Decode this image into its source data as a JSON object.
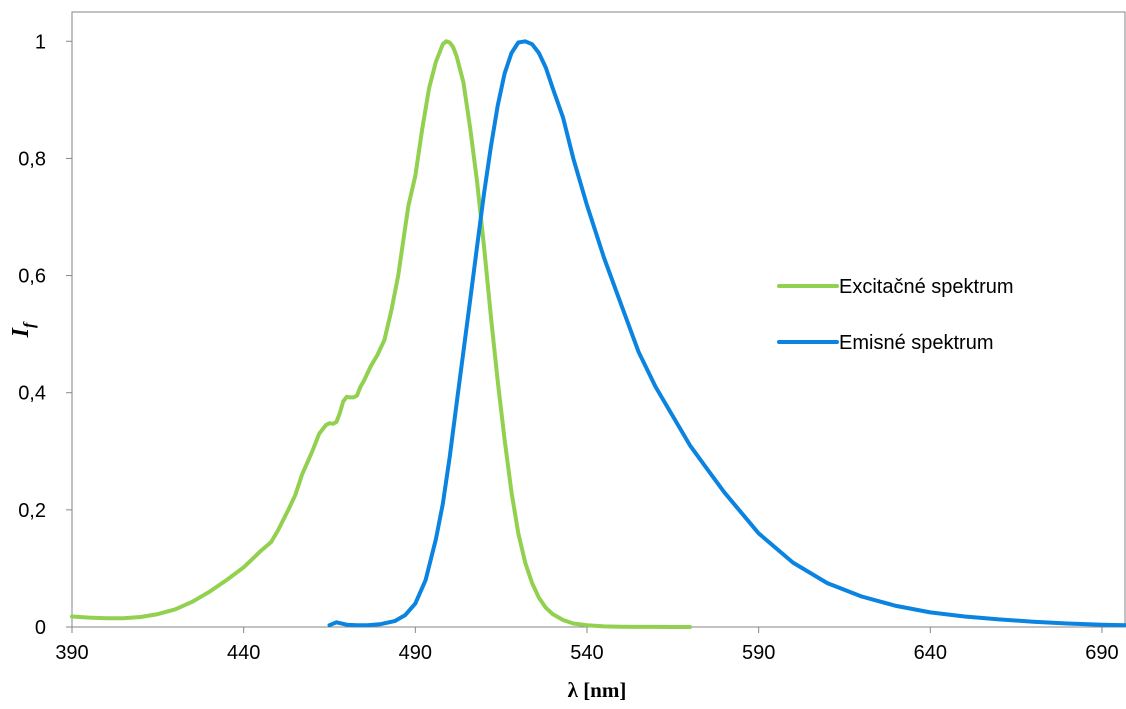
{
  "chart_data": {
    "type": "line",
    "xlabel": "λ [nm]",
    "ylabel": "I",
    "ylabel_sub": "f",
    "xlim": [
      390,
      697
    ],
    "ylim": [
      0,
      1.05
    ],
    "x_ticks": [
      {
        "value": 390,
        "label": "390"
      },
      {
        "value": 440,
        "label": "440"
      },
      {
        "value": 490,
        "label": "490"
      },
      {
        "value": 540,
        "label": "540"
      },
      {
        "value": 590,
        "label": "590"
      },
      {
        "value": 640,
        "label": "640"
      },
      {
        "value": 690,
        "label": "690"
      }
    ],
    "y_ticks": [
      {
        "value": 0,
        "label": "0"
      },
      {
        "value": 0.2,
        "label": "0,2"
      },
      {
        "value": 0.4,
        "label": "0,4"
      },
      {
        "value": 0.6,
        "label": "0,6"
      },
      {
        "value": 0.8,
        "label": "0,8"
      },
      {
        "value": 1,
        "label": "1"
      }
    ],
    "grid": false,
    "legend_position": "right",
    "series": [
      {
        "name": "Excitačné spektrum",
        "color": "#92d050",
        "x": [
          390,
          395,
          400,
          405,
          410,
          415,
          420,
          425,
          430,
          435,
          440,
          445,
          448,
          450,
          453,
          455,
          457,
          460,
          462,
          464,
          465,
          466,
          467,
          468,
          469,
          470,
          471,
          472,
          473,
          474,
          475,
          477,
          479,
          481,
          483,
          485,
          487,
          488,
          490,
          492,
          494,
          496,
          498,
          499,
          500,
          501,
          502,
          504,
          506,
          508,
          510,
          512,
          514,
          516,
          518,
          520,
          522,
          524,
          526,
          528,
          530,
          533,
          536,
          540,
          545,
          550,
          555,
          560,
          565,
          570
        ],
        "y": [
          0.018,
          0.016,
          0.015,
          0.015,
          0.017,
          0.022,
          0.03,
          0.043,
          0.06,
          0.08,
          0.102,
          0.13,
          0.145,
          0.165,
          0.2,
          0.225,
          0.26,
          0.3,
          0.33,
          0.345,
          0.348,
          0.347,
          0.35,
          0.365,
          0.385,
          0.393,
          0.392,
          0.392,
          0.395,
          0.41,
          0.42,
          0.445,
          0.465,
          0.49,
          0.54,
          0.6,
          0.68,
          0.72,
          0.77,
          0.85,
          0.92,
          0.965,
          0.995,
          1.0,
          0.998,
          0.99,
          0.975,
          0.93,
          0.85,
          0.76,
          0.65,
          0.53,
          0.42,
          0.32,
          0.23,
          0.16,
          0.11,
          0.075,
          0.05,
          0.033,
          0.022,
          0.012,
          0.006,
          0.003,
          0.001,
          0.0005,
          0.0002,
          0.0001,
          0,
          0
        ]
      },
      {
        "name": "Emisné spektrum",
        "color": "#0a84e0",
        "x": [
          465,
          467,
          470,
          473,
          476,
          480,
          484,
          487,
          490,
          493,
          496,
          498,
          500,
          502,
          504,
          506,
          508,
          510,
          512,
          514,
          516,
          518,
          520,
          522,
          524,
          526,
          528,
          530,
          533,
          536,
          540,
          545,
          550,
          555,
          560,
          565,
          570,
          575,
          580,
          590,
          600,
          610,
          620,
          630,
          640,
          650,
          660,
          670,
          680,
          690,
          697
        ],
        "y": [
          0.003,
          0.008,
          0.004,
          0.003,
          0.003,
          0.005,
          0.01,
          0.02,
          0.04,
          0.08,
          0.15,
          0.21,
          0.29,
          0.38,
          0.47,
          0.56,
          0.65,
          0.74,
          0.82,
          0.89,
          0.945,
          0.98,
          0.998,
          1.0,
          0.995,
          0.98,
          0.955,
          0.92,
          0.87,
          0.8,
          0.72,
          0.63,
          0.55,
          0.47,
          0.41,
          0.36,
          0.31,
          0.27,
          0.23,
          0.16,
          0.11,
          0.075,
          0.052,
          0.036,
          0.025,
          0.018,
          0.013,
          0.009,
          0.006,
          0.004,
          0.003
        ]
      }
    ]
  }
}
